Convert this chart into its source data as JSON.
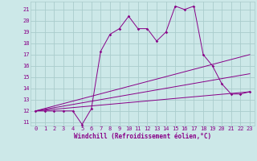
{
  "xlabel": "Windchill (Refroidissement éolien,°C)",
  "xlim": [
    -0.5,
    23.5
  ],
  "ylim": [
    10.7,
    21.7
  ],
  "yticks": [
    11,
    12,
    13,
    14,
    15,
    16,
    17,
    18,
    19,
    20,
    21
  ],
  "xticks": [
    0,
    1,
    2,
    3,
    4,
    5,
    6,
    7,
    8,
    9,
    10,
    11,
    12,
    13,
    14,
    15,
    16,
    17,
    18,
    19,
    20,
    21,
    22,
    23
  ],
  "background_color": "#cce8e8",
  "grid_color": "#aacccc",
  "line_color": "#880088",
  "line1_x": [
    0,
    1,
    2,
    3,
    4,
    5,
    6,
    7,
    8,
    9,
    10,
    11,
    12,
    13,
    14,
    15,
    16,
    17,
    18,
    19,
    20,
    21,
    22,
    23
  ],
  "line1_y": [
    12,
    12,
    12,
    12,
    12,
    10.8,
    12.2,
    17.3,
    18.8,
    19.3,
    20.4,
    19.3,
    19.3,
    18.2,
    19.0,
    21.3,
    21.0,
    21.3,
    17.0,
    16.0,
    14.4,
    13.5,
    13.5,
    13.7
  ],
  "line2_x": [
    0,
    23
  ],
  "line2_y": [
    12,
    13.7
  ],
  "line3_x": [
    0,
    23
  ],
  "line3_y": [
    12,
    15.3
  ],
  "line4_x": [
    0,
    23
  ],
  "line4_y": [
    12,
    17.0
  ],
  "tick_fontsize": 5,
  "xlabel_fontsize": 5.5
}
